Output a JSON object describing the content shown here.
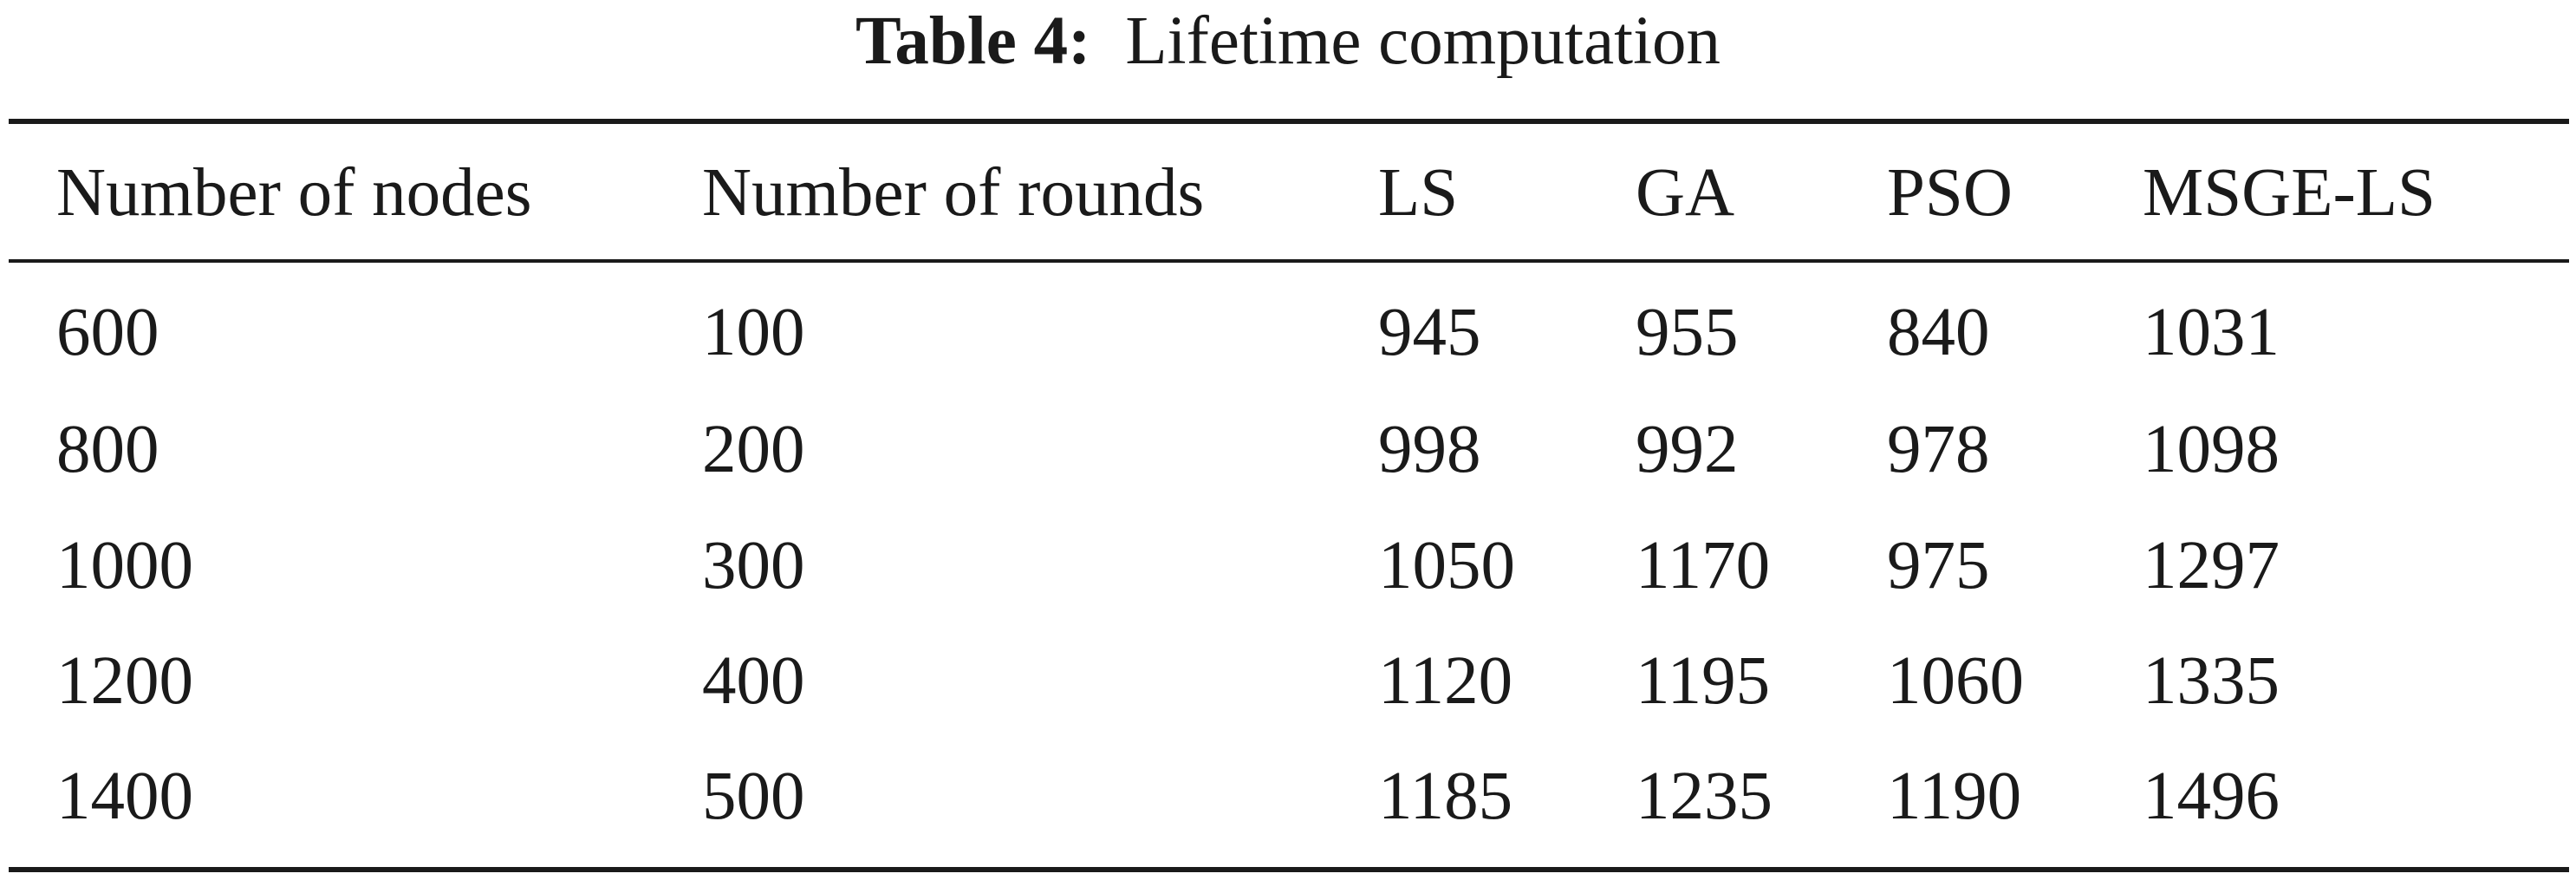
{
  "caption": {
    "label": "Table 4:",
    "text": "Lifetime computation"
  },
  "table": {
    "headers": [
      "Number of nodes",
      "Number of rounds",
      "LS",
      "GA",
      "PSO",
      "MSGE-LS"
    ],
    "rows": [
      [
        "600",
        "100",
        "945",
        "955",
        "840",
        "1031"
      ],
      [
        "800",
        "200",
        "998",
        "992",
        "978",
        "1098"
      ],
      [
        "1000",
        "300",
        "1050",
        "1170",
        "975",
        "1297"
      ],
      [
        "1200",
        "400",
        "1120",
        "1195",
        "1060",
        "1335"
      ],
      [
        "1400",
        "500",
        "1185",
        "1235",
        "1190",
        "1496"
      ]
    ]
  }
}
